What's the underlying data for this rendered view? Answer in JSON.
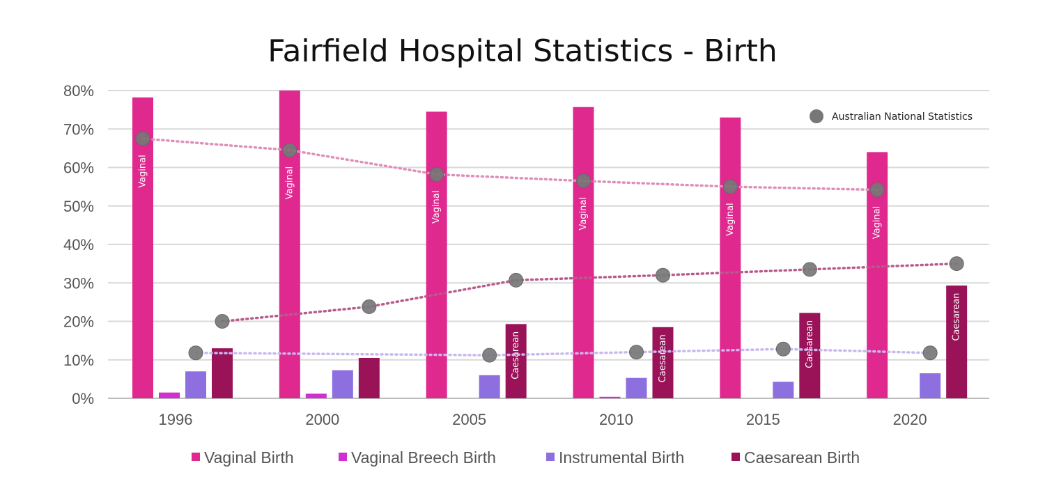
{
  "chart_data": {
    "type": "bar",
    "title": "Fairfield Hospital Statistics - Birth",
    "categories": [
      "1996",
      "2000",
      "2005",
      "2010",
      "2015",
      "2020"
    ],
    "ylim": [
      0,
      80
    ],
    "yticks": [
      "0%",
      "10%",
      "20%",
      "30%",
      "40%",
      "50%",
      "60%",
      "70%",
      "80%"
    ],
    "series": [
      {
        "name": "Vaginal Birth",
        "color": "#e0298f",
        "bar_label": "Vaginal",
        "values": [
          78.2,
          80.0,
          74.5,
          75.7,
          73.0,
          64.0
        ]
      },
      {
        "name": "Vaginal Breech Birth",
        "color": "#d12fd0",
        "bar_label": "",
        "values": [
          1.5,
          1.2,
          0,
          0.4,
          0,
          0
        ]
      },
      {
        "name": "Instrumental Birth",
        "color": "#8e6fe0",
        "bar_label": "",
        "values": [
          7.0,
          7.3,
          6.0,
          5.3,
          4.3,
          6.5
        ]
      },
      {
        "name": "Caesarean Birth",
        "color": "#9a1258",
        "bar_label": "Caesarean",
        "values": [
          13.0,
          10.5,
          19.3,
          18.5,
          22.2,
          29.3
        ]
      }
    ],
    "caesarean_label_years": [
      "2005",
      "2010",
      "2015",
      "2020"
    ],
    "national": {
      "name": "Australian National Statistics",
      "marker_color": "#777777",
      "vaginal": [
        67.5,
        64.5,
        58.2,
        56.5,
        55.0,
        54.2
      ],
      "vaginal_line_color": "#de8fb8",
      "caesarean": [
        20.0,
        23.8,
        30.7,
        32.0,
        33.5,
        35.0
      ],
      "caesarean_line_color": "#b85a8c",
      "instrumental": [
        11.8,
        null,
        11.2,
        12.0,
        12.8,
        11.8
      ],
      "instrumental_line_color": "#c9b8ee"
    },
    "legend": [
      "Vaginal Birth",
      "Vaginal Breech Birth",
      "Instrumental Birth",
      "Caesarean Birth"
    ]
  }
}
